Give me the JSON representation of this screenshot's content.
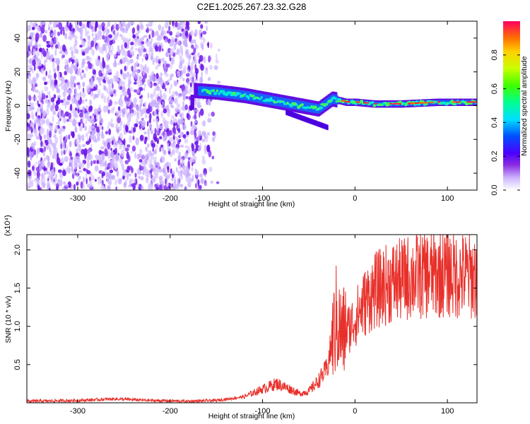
{
  "title": "C2E1.2025.267.23.32.G28",
  "colors": {
    "snr_line": "#e8302a",
    "frame": "#000000",
    "purple_dark": "#5a00e0",
    "purple_light": "#d8c4ff"
  },
  "chart_data": [
    {
      "type": "heatmap",
      "name": "spectrogram",
      "xlabel": "Height of straight line (km)",
      "ylabel": "Frequency (Hz)",
      "xlim": [
        -355,
        132
      ],
      "ylim": [
        -50,
        50
      ],
      "x_ticks": [
        -300,
        -200,
        -100,
        0,
        100
      ],
      "y_ticks": [
        -40,
        -20,
        0,
        20,
        40
      ],
      "grid": false,
      "colorbar": {
        "label": "Normalized spectral amplitude",
        "range": [
          0,
          1
        ],
        "ticks": [
          0.0,
          0.2,
          0.4,
          0.6,
          0.8
        ],
        "colormap": "rainbow"
      },
      "signal_track": [
        {
          "x": -175,
          "f": 9
        },
        {
          "x": -150,
          "f": 8
        },
        {
          "x": -120,
          "f": 6
        },
        {
          "x": -100,
          "f": 4
        },
        {
          "x": -80,
          "f": 2
        },
        {
          "x": -60,
          "f": 0
        },
        {
          "x": -40,
          "f": -2
        },
        {
          "x": -25,
          "f": 4
        },
        {
          "x": -10,
          "f": 2
        },
        {
          "x": 0,
          "f": 2
        },
        {
          "x": 20,
          "f": 1
        },
        {
          "x": 50,
          "f": 1
        },
        {
          "x": 90,
          "f": 2
        },
        {
          "x": 132,
          "f": 2
        }
      ]
    },
    {
      "type": "line",
      "name": "snr",
      "xlabel": "Height of straight line (km)",
      "ylabel": "SNR (10 * v/v)",
      "y_multiplier": "(x10⁴)",
      "xlim": [
        -355,
        132
      ],
      "ylim": [
        0,
        2.2
      ],
      "x_ticks": [
        -300,
        -200,
        -100,
        0,
        100
      ],
      "y_ticks": [
        0.5,
        1.0,
        1.5,
        2.0
      ],
      "grid": false,
      "series": [
        {
          "x": [
            -355,
            -300,
            -260,
            -220,
            -180,
            -150,
            -120,
            -100,
            -85,
            -70,
            -60,
            -50,
            -40,
            -30,
            -25,
            -20,
            -15,
            -10,
            -5,
            0,
            10,
            20,
            30,
            40,
            50,
            60,
            70,
            80,
            90,
            100,
            110,
            120,
            132
          ],
          "y": [
            0.02,
            0.03,
            0.05,
            0.03,
            0.02,
            0.03,
            0.08,
            0.18,
            0.25,
            0.18,
            0.12,
            0.15,
            0.28,
            0.45,
            0.8,
            1.1,
            0.9,
            0.95,
            1.0,
            1.1,
            1.3,
            1.45,
            1.52,
            1.58,
            1.6,
            1.65,
            1.66,
            1.68,
            1.68,
            1.7,
            1.66,
            1.67,
            1.65
          ]
        }
      ]
    }
  ]
}
